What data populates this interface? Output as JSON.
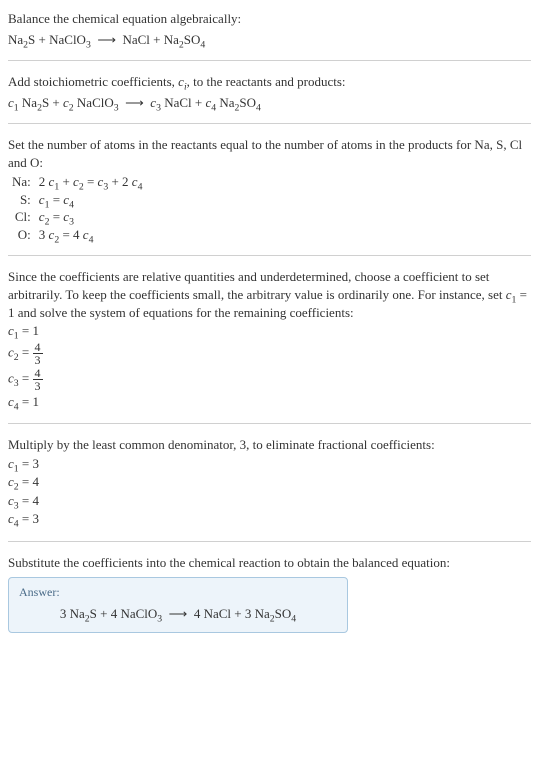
{
  "section1": {
    "line1": "Balance the chemical equation algebraically:",
    "eqn_lhs_a": "Na",
    "eqn_lhs_a_sub": "2",
    "eqn_lhs_b": "S + NaClO",
    "eqn_lhs_b_sub": "3",
    "arrow": "⟶",
    "eqn_rhs_a": "NaCl + Na",
    "eqn_rhs_a_sub": "2",
    "eqn_rhs_b": "SO",
    "eqn_rhs_b_sub": "4"
  },
  "section2": {
    "line1a": "Add stoichiometric coefficients, ",
    "ci": "c",
    "ci_sub": "i",
    "line1b": ", to the reactants and products:",
    "c1": "c",
    "c1s": "1",
    "sp1": " Na",
    "sp1s": "2",
    "sp1b": "S + ",
    "c2": "c",
    "c2s": "2",
    "sp2": " NaClO",
    "sp2s": "3",
    "arrow": "⟶",
    "c3": "c",
    "c3s": "3",
    "sp3": " NaCl + ",
    "c4": "c",
    "c4s": "4",
    "sp4": " Na",
    "sp4s": "2",
    "sp4b": "SO",
    "sp4bs": "4"
  },
  "section3": {
    "intro": "Set the number of atoms in the reactants equal to the number of atoms in the products for Na, S, Cl and O:",
    "rows": [
      {
        "el": "Na:",
        "lhs_a": "2 ",
        "c1": "c",
        "c1s": "1",
        "mid1": " + ",
        "c2": "c",
        "c2s": "2",
        "eq": " = ",
        "c3": "c",
        "c3s": "3",
        "mid2": " + 2 ",
        "c4": "c",
        "c4s": "4"
      },
      {
        "el": "S:",
        "c1": "c",
        "c1s": "1",
        "eq": " = ",
        "c4": "c",
        "c4s": "4"
      },
      {
        "el": "Cl:",
        "c2": "c",
        "c2s": "2",
        "eq": " = ",
        "c3": "c",
        "c3s": "3"
      },
      {
        "el": "O:",
        "lhs_a": "3 ",
        "c2": "c",
        "c2s": "2",
        "eq": " = 4 ",
        "c4": "c",
        "c4s": "4"
      }
    ]
  },
  "section4": {
    "para_a": "Since the coefficients are relative quantities and underdetermined, choose a coefficient to set arbitrarily. To keep the coefficients small, the arbitrary value is ordinarily one. For instance, set ",
    "c1": "c",
    "c1s": "1",
    "para_b": " = 1 and solve the system of equations for the remaining coefficients:",
    "lines": [
      {
        "c": "c",
        "s": "1",
        "eq": " = 1"
      },
      {
        "c": "c",
        "s": "2",
        "eq": " = ",
        "frac_num": "4",
        "frac_den": "3"
      },
      {
        "c": "c",
        "s": "3",
        "eq": " = ",
        "frac_num": "4",
        "frac_den": "3"
      },
      {
        "c": "c",
        "s": "4",
        "eq": " = 1"
      }
    ]
  },
  "section5": {
    "para": "Multiply by the least common denominator, 3, to eliminate fractional coefficients:",
    "lines": [
      {
        "c": "c",
        "s": "1",
        "eq": " = 3"
      },
      {
        "c": "c",
        "s": "2",
        "eq": " = 4"
      },
      {
        "c": "c",
        "s": "3",
        "eq": " = 4"
      },
      {
        "c": "c",
        "s": "4",
        "eq": " = 3"
      }
    ]
  },
  "section6": {
    "para": "Substitute the coefficients into the chemical reaction to obtain the balanced equation:",
    "answer_label": "Answer:",
    "a1": "3 Na",
    "a1s": "2",
    "a2": "S + 4 NaClO",
    "a2s": "3",
    "arrow": "⟶",
    "a3": "4 NaCl + 3 Na",
    "a3s": "2",
    "a4": "SO",
    "a4s": "4"
  },
  "colors": {
    "divider": "#d0d0d0",
    "text": "#333333",
    "answer_border": "#a9c8e0",
    "answer_bg": "#edf4fa",
    "answer_label": "#4a6b88"
  }
}
